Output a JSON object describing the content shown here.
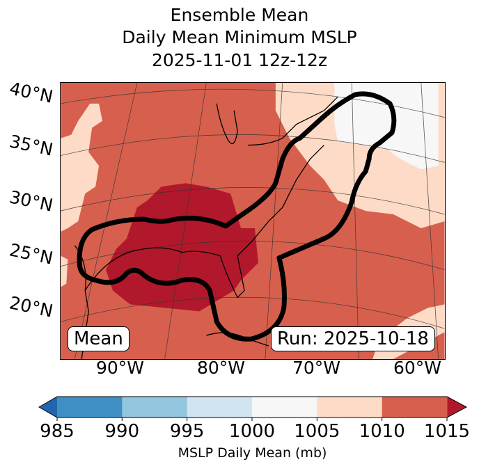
{
  "title": [
    "Ensemble Mean",
    "Daily Mean Minimum MSLP",
    "2025-11-01 12z-12z"
  ],
  "lat_labels": [
    "40°N",
    "35°N",
    "30°N",
    "25°N",
    "20°N"
  ],
  "lon_labels": [
    "90°W",
    "80°W",
    "70°W",
    "60°W"
  ],
  "annotations": {
    "left": "Mean",
    "right": "Run: 2025-10-18"
  },
  "colorbar": {
    "label": "MSLP Daily Mean (mb)",
    "ticks": [
      "985",
      "990",
      "995",
      "1000",
      "1005",
      "1010",
      "1015"
    ],
    "colors": [
      "#3f8fc4",
      "#92c5de",
      "#d1e5f0",
      "#f7f7f7",
      "#fddbc7",
      "#d6604d"
    ],
    "extend_low": "#2166ac",
    "extend_high": "#b2182b"
  },
  "map_colors": {
    "base": "#d6604d",
    "low": "#b2182b",
    "light": "#fddbc7",
    "white": "#f7f7f7"
  }
}
